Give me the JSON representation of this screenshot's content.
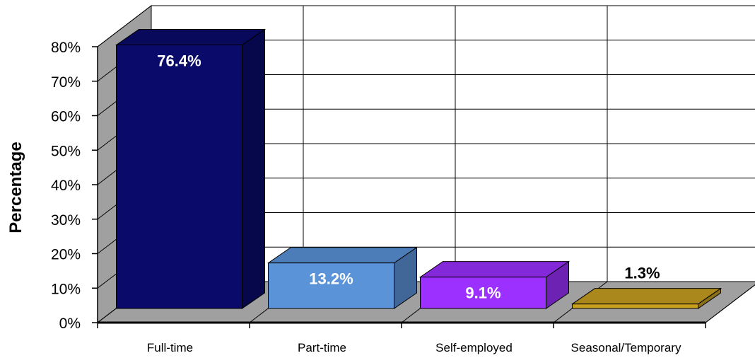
{
  "chart_data": {
    "type": "bar",
    "title": "",
    "xlabel": "",
    "ylabel": "Percentage",
    "ylim": [
      0,
      80
    ],
    "yticks": [
      "0%",
      "10%",
      "20%",
      "30%",
      "40%",
      "50%",
      "60%",
      "70%",
      "80%"
    ],
    "grid": true,
    "categories": [
      "Full-time",
      "Part-time",
      "Self-employed",
      "Seasonal/Temporary"
    ],
    "values": [
      76.4,
      13.2,
      9.1,
      1.3
    ],
    "data_labels": [
      "76.4%",
      "13.2%",
      "9.1%",
      "1.3%"
    ],
    "colors": [
      "#0a0a6b",
      "#5b93d8",
      "#9b30ff",
      "#c8a020"
    ],
    "label_colors": [
      "#ffffff",
      "#ffffff",
      "#ffffff",
      "#000000"
    ]
  }
}
